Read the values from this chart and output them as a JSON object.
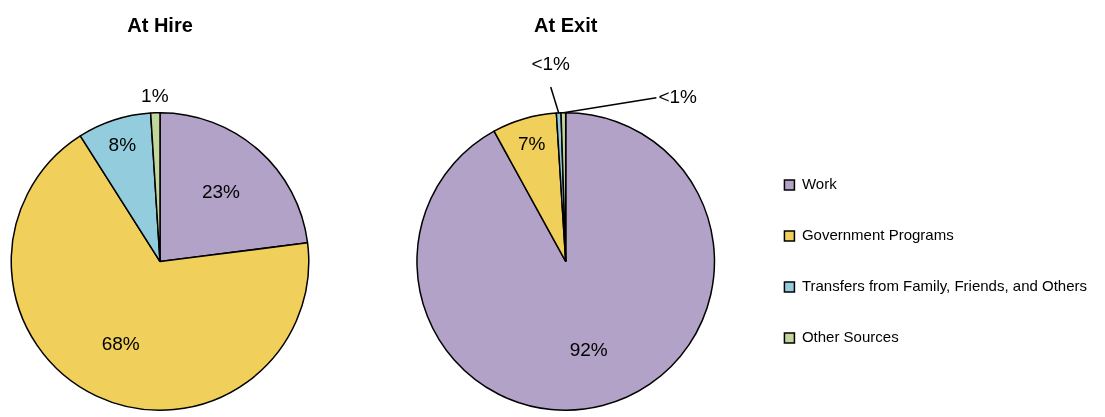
{
  "chart_data": [
    {
      "type": "pie",
      "title": "At Hire",
      "categories": [
        null,
        null,
        null,
        null
      ],
      "values": [
        23,
        68,
        8,
        1
      ],
      "colors": [
        "#b3a2c7",
        "#f0cf5b",
        "#93cddd",
        "#c3d69b"
      ],
      "value_labels": [
        "23%",
        "68%",
        "8%",
        "1%"
      ],
      "legend": false
    },
    {
      "type": "pie",
      "title": "At Exit",
      "categories": [
        "Work",
        "Government Programs",
        "Transfers from Family, Friends, and Others",
        "Other Sources"
      ],
      "values": [
        92,
        7,
        0.5,
        0.5
      ],
      "colors": [
        "#b3a2c7",
        "#f0cf5b",
        "#93cddd",
        "#c3d69b"
      ],
      "value_labels": [
        "92%",
        "7%",
        "<1%",
        "<1%"
      ],
      "legend": "right"
    }
  ]
}
